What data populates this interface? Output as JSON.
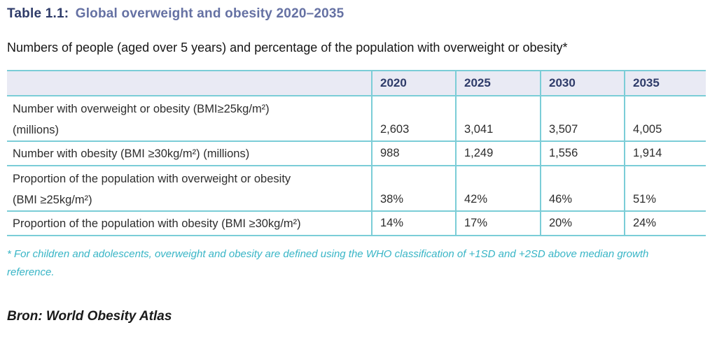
{
  "title": {
    "prefix": "Table 1.1:",
    "main": "Global overweight and obesity 2020–2035"
  },
  "subtitle": "Numbers of people (aged over 5 years) and percentage of the population with overweight or obesity*",
  "table": {
    "year_columns": [
      "2020",
      "2025",
      "2030",
      "2035"
    ],
    "rows": [
      {
        "label_lines": [
          "Number with overweight or obesity (BMI≥25kg/m²)",
          "(millions)"
        ],
        "values": [
          "2,603",
          "3,041",
          "3,507",
          "4,005"
        ]
      },
      {
        "label_lines": [
          "Number with obesity (BMI ≥30kg/m²) (millions)"
        ],
        "values": [
          "988",
          "1,249",
          "1,556",
          "1,914"
        ]
      },
      {
        "label_lines": [
          "Proportion of the population with overweight or obesity",
          "(BMI ≥25kg/m²)"
        ],
        "values": [
          "38%",
          "42%",
          "46%",
          "51%"
        ]
      },
      {
        "label_lines": [
          "Proportion of the population with obesity (BMI ≥30kg/m²)"
        ],
        "values": [
          "14%",
          "17%",
          "20%",
          "24%"
        ]
      }
    ]
  },
  "footnote": {
    "lines": [
      "* For children and adolescents, overweight and obesity are defined using the WHO classification of +1SD and +2SD above median growth",
      "reference."
    ]
  },
  "source": "Bron: World Obesity Atlas",
  "colors": {
    "title_prefix": "#2e3b69",
    "title_main": "#6571a3",
    "header_text": "#2e3b69",
    "header_background": "#e9eaf4",
    "table_border": "#7bcdd7",
    "footnote_text": "#38b5c6",
    "body_text": "#2d2d2d"
  },
  "chart_data": {
    "type": "table",
    "title": "Table 1.1: Global overweight and obesity 2020–2035",
    "columns": [
      "",
      "2020",
      "2025",
      "2030",
      "2035"
    ],
    "rows": [
      [
        "Number with overweight or obesity (BMI≥25kg/m²) (millions)",
        "2,603",
        "3,041",
        "3,507",
        "4,005"
      ],
      [
        "Number with obesity (BMI ≥30kg/m²) (millions)",
        "988",
        "1,249",
        "1,556",
        "1,914"
      ],
      [
        "Proportion of the population with overweight or obesity (BMI ≥25kg/m²)",
        "38%",
        "42%",
        "46%",
        "51%"
      ],
      [
        "Proportion of the population with obesity (BMI ≥30kg/m²)",
        "14%",
        "17%",
        "20%",
        "24%"
      ]
    ]
  }
}
